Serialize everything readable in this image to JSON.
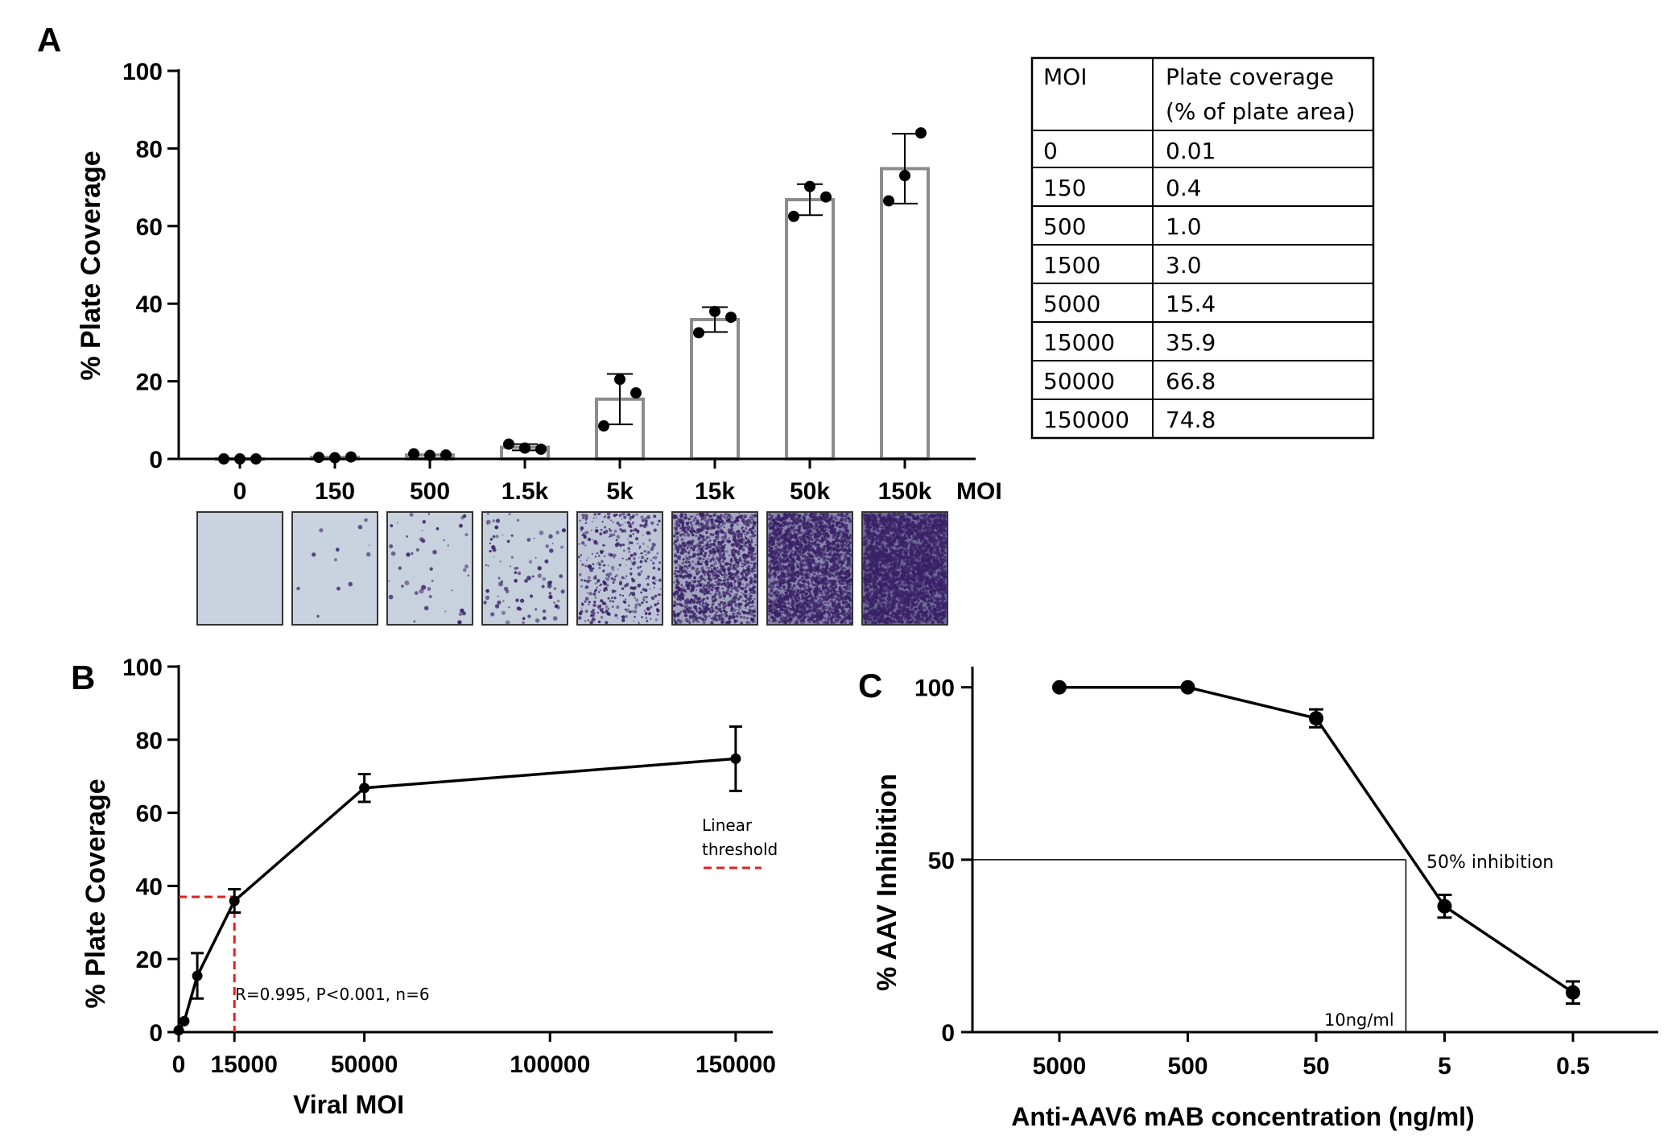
{
  "colors": {
    "axis": "#000000",
    "bar_edge": "#8c8c8c",
    "threshold": "#e02020",
    "plate_bg": "#c9d3df",
    "plate_stain": "#3a2166"
  },
  "panel_labels": {
    "a": "A",
    "b": "B",
    "c": "C"
  },
  "chart_data": [
    {
      "id": "A",
      "type": "bar",
      "categories": [
        "0",
        "150",
        "500",
        "1.5k",
        "5k",
        "15k",
        "50k",
        "150k"
      ],
      "values": [
        0.01,
        0.4,
        1.0,
        3.0,
        15.4,
        35.9,
        66.8,
        74.8
      ],
      "errors": [
        0.2,
        0.3,
        0.5,
        0.8,
        6.5,
        3.2,
        4.0,
        9.0
      ],
      "points": [
        [
          0.0,
          0.0,
          0.0
        ],
        [
          0.4,
          0.3,
          0.5
        ],
        [
          1.3,
          0.9,
          1.0
        ],
        [
          3.8,
          2.8,
          2.5
        ],
        [
          8.5,
          20.5,
          17.0
        ],
        [
          32.5,
          38.0,
          36.5
        ],
        [
          62.5,
          70.2,
          67.5
        ],
        [
          66.5,
          73.0,
          84.0
        ]
      ],
      "plate_density": [
        0,
        12,
        45,
        90,
        420,
        1400,
        2400,
        3200
      ],
      "title": "",
      "xlabel": "MOI",
      "ylabel": "% Plate Coverage",
      "ylim": [
        0,
        100
      ],
      "yticks": [
        0,
        20,
        40,
        60,
        80,
        100
      ],
      "grid": false
    },
    {
      "id": "A-table",
      "type": "table",
      "columns": [
        "MOI",
        "Plate coverage\n(% of plate area)"
      ],
      "header_lines": [
        "Plate coverage",
        "(% of plate area)"
      ],
      "rows": [
        [
          "0",
          "0.01"
        ],
        [
          "150",
          "0.4"
        ],
        [
          "500",
          "1.0"
        ],
        [
          "1500",
          "3.0"
        ],
        [
          "5000",
          "15.4"
        ],
        [
          "15000",
          "35.9"
        ],
        [
          "50000",
          "66.8"
        ],
        [
          "150000",
          "74.8"
        ]
      ]
    },
    {
      "id": "B",
      "type": "line",
      "x": [
        0,
        1500,
        5000,
        15000,
        50000,
        150000
      ],
      "y": [
        0.5,
        3.0,
        15.4,
        35.9,
        66.8,
        74.8
      ],
      "errors": [
        0.3,
        0.5,
        6.2,
        3.2,
        3.8,
        8.8
      ],
      "xlabel": "Viral MOI",
      "ylabel": "% Plate Coverage",
      "xlim": [
        0,
        160000
      ],
      "ylim": [
        0,
        100
      ],
      "xticks": [
        0,
        15000,
        50000,
        100000,
        150000
      ],
      "yticks": [
        0,
        20,
        40,
        60,
        80,
        100
      ],
      "threshold_x": 15000,
      "threshold_y": 37,
      "legend": [
        "Linear",
        "threshold"
      ],
      "annotation": "R=0.995, P<0.001, n=6"
    },
    {
      "id": "C",
      "type": "line",
      "categories": [
        "5000",
        "500",
        "50",
        "5",
        "0.5"
      ],
      "y": [
        100,
        100,
        91,
        36.5,
        11.5
      ],
      "errors": [
        0.3,
        0.3,
        2.6,
        3.3,
        3.2
      ],
      "xlabel": "Anti-AAV6 mAB concentration (ng/ml)",
      "ylabel": "% AAV Inhibition",
      "ylim": [
        0,
        106
      ],
      "yticks": [
        0,
        50,
        100
      ],
      "ic50_x_label": "10ng/ml",
      "ic50_y_label": "50% inhibition",
      "ic50_y": 50,
      "ic50_x_log": 1
    }
  ]
}
